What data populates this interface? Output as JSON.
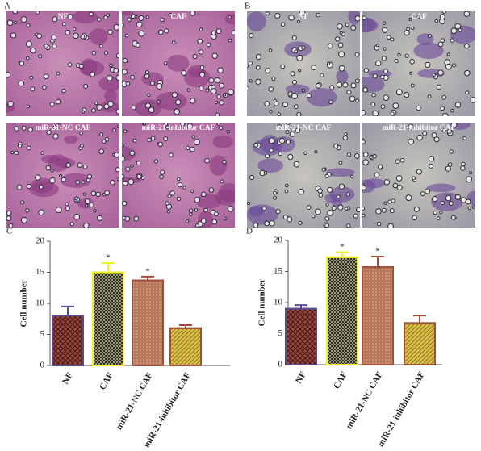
{
  "panels": [
    {
      "label": "A",
      "images": [
        "NF",
        "CAF",
        "miR-21-NC CAF",
        "miR-21-inhibitor CAF"
      ]
    },
    {
      "label": "B",
      "images": [
        "NF",
        "CAF",
        "miR-21-NC CAF",
        "miR-21-inhibitor CAF"
      ]
    }
  ],
  "chart_data": [
    {
      "type": "bar",
      "title": "C",
      "ylabel": "Cell number",
      "categories": [
        "NF",
        "CAF",
        "miR-21-NC CAF",
        "miR-21-inhibitor CAF"
      ],
      "values": [
        8,
        15,
        13.7,
        6
      ],
      "errors": [
        1.5,
        1.5,
        0.6,
        0.5
      ],
      "significance": [
        null,
        "*",
        "*",
        null
      ],
      "colors": [
        "#a0443c",
        "#2e2e22",
        "#b87a5a",
        "#d8c040"
      ],
      "edgecolors": [
        "#5a4a8a",
        "#f5f020",
        "#a0503a",
        "#a0503a"
      ],
      "hatches": [
        "cross",
        "check",
        "dots",
        "diagonal"
      ],
      "ylim": [
        0,
        20
      ],
      "yticks": [
        0,
        5,
        10,
        15,
        20
      ]
    },
    {
      "type": "bar",
      "title": "D",
      "ylabel": "Cell number",
      "categories": [
        "NF",
        "CAF",
        "miR-21-NC CAF",
        "miR-21-inhibitor CAF"
      ],
      "values": [
        9,
        17.3,
        15.7,
        6.7
      ],
      "errors": [
        0.6,
        0.8,
        1.7,
        1.2
      ],
      "significance": [
        null,
        "*",
        "*",
        null
      ],
      "colors": [
        "#a0443c",
        "#2e2e22",
        "#b87a5a",
        "#d8c040"
      ],
      "edgecolors": [
        "#5a4a8a",
        "#f5f020",
        "#a0503a",
        "#a0503a"
      ],
      "hatches": [
        "cross",
        "check",
        "dots",
        "diagonal"
      ],
      "ylim": [
        0,
        20
      ],
      "yticks": [
        0,
        5,
        10,
        15,
        20
      ]
    }
  ]
}
